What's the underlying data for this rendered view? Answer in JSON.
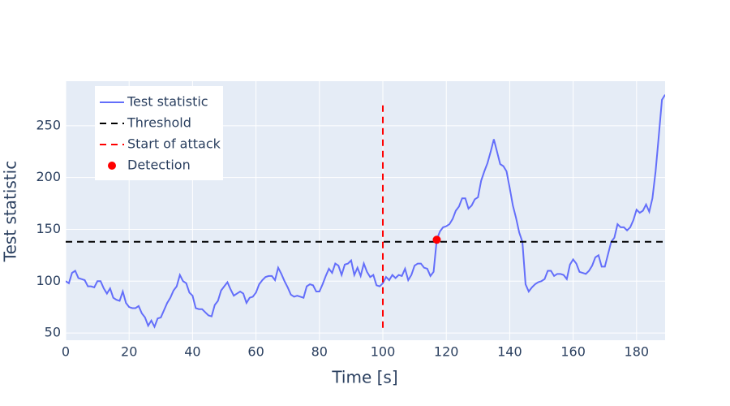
{
  "chart_data": {
    "type": "line",
    "xlabel": "Time [s]",
    "ylabel": "Test statistic",
    "xlim": [
      0,
      189
    ],
    "ylim": [
      43,
      293
    ],
    "xticks": [
      0,
      20,
      40,
      60,
      80,
      100,
      120,
      140,
      160,
      180
    ],
    "yticks": [
      50,
      100,
      150,
      200,
      250
    ],
    "grid": true,
    "legend": "upper-left",
    "x": [
      0,
      1,
      2,
      3,
      4,
      5,
      6,
      7,
      8,
      9,
      10,
      11,
      12,
      13,
      14,
      15,
      16,
      17,
      18,
      19,
      20,
      21,
      22,
      23,
      24,
      25,
      26,
      27,
      28,
      29,
      30,
      31,
      32,
      33,
      34,
      35,
      36,
      37,
      38,
      39,
      40,
      41,
      42,
      43,
      44,
      45,
      46,
      47,
      48,
      49,
      50,
      51,
      52,
      53,
      54,
      55,
      56,
      57,
      58,
      59,
      60,
      61,
      62,
      63,
      64,
      65,
      66,
      67,
      68,
      69,
      70,
      71,
      72,
      73,
      74,
      75,
      76,
      77,
      78,
      79,
      80,
      81,
      82,
      83,
      84,
      85,
      86,
      87,
      88,
      89,
      90,
      91,
      92,
      93,
      94,
      95,
      96,
      97,
      98,
      99,
      100,
      101,
      102,
      103,
      104,
      105,
      106,
      107,
      108,
      109,
      110,
      111,
      112,
      113,
      114,
      115,
      116,
      117,
      118,
      119,
      120,
      121,
      122,
      123,
      124,
      125,
      126,
      127,
      128,
      129,
      130,
      131,
      132,
      133,
      134,
      135,
      136,
      137,
      138,
      139,
      140,
      141,
      142,
      143,
      144,
      145,
      146,
      147,
      148,
      149,
      150,
      151,
      152,
      153,
      154,
      155,
      156,
      157,
      158,
      159,
      160,
      161,
      162,
      163,
      164,
      165,
      166,
      167,
      168,
      169,
      170,
      171,
      172,
      173,
      174,
      175,
      176,
      177,
      178,
      179,
      180,
      181,
      182,
      183,
      184,
      185,
      186,
      187,
      188,
      189
    ],
    "series": [
      {
        "name": "Test statistic",
        "color": "#636efa",
        "values": [
          100,
          98,
          108,
          110,
          103,
          102,
          101,
          95,
          95,
          94,
          100,
          100,
          93,
          88,
          93,
          84,
          82,
          81,
          90,
          79,
          75,
          74,
          74,
          76,
          69,
          65,
          57,
          62,
          56,
          64,
          65,
          72,
          79,
          84,
          91,
          95,
          106,
          100,
          98,
          89,
          86,
          74,
          73,
          73,
          70,
          67,
          66,
          77,
          81,
          91,
          95,
          99,
          92,
          86,
          88,
          90,
          88,
          79,
          84,
          85,
          89,
          97,
          101,
          104,
          105,
          105,
          101,
          113,
          107,
          100,
          94,
          87,
          85,
          86,
          85,
          84,
          95,
          97,
          96,
          90,
          90,
          97,
          105,
          112,
          108,
          117,
          115,
          106,
          116,
          117,
          120,
          106,
          113,
          105,
          117,
          109,
          104,
          106,
          96,
          95,
          98,
          104,
          101,
          106,
          103,
          106,
          105,
          112,
          101,
          106,
          115,
          117,
          117,
          113,
          112,
          105,
          109,
          140,
          148,
          152,
          153,
          155,
          160,
          168,
          172,
          180,
          180,
          170,
          173,
          179,
          181,
          197,
          206,
          214,
          225,
          237,
          225,
          213,
          211,
          206,
          190,
          173,
          161,
          147,
          138,
          97,
          90,
          94,
          97,
          99,
          100,
          102,
          110,
          110,
          105,
          107,
          107,
          106,
          102,
          116,
          121,
          117,
          109,
          108,
          107,
          110,
          115,
          123,
          125,
          114,
          114,
          126,
          138,
          142,
          155,
          152,
          152,
          149,
          152,
          159,
          169,
          166,
          168,
          174,
          167,
          180,
          206,
          240,
          275,
          280
        ]
      }
    ],
    "threshold": {
      "name": "Threshold",
      "value": 138,
      "color": "#000000"
    },
    "attack": {
      "name": "Start of attack",
      "x": 100,
      "y": [
        55,
        274
      ],
      "color": "#ff0000"
    },
    "detection": {
      "name": "Detection",
      "x": 117,
      "y": 140,
      "color": "#ff0000"
    }
  }
}
